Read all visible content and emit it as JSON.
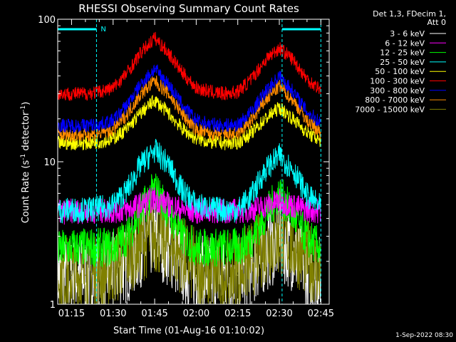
{
  "chart_data": {
    "type": "line",
    "title": "RHESSI Observing Summary Count Rates",
    "xlabel": "Start Time (01-Aug-16 01:10:02)",
    "ylabel": "Count Rate (s⁻¹ detector⁻¹)",
    "ylabel_parts": {
      "prefix": "Count Rate (s",
      "sup1": "-1",
      "mid": " detector",
      "sup2": "-1",
      "suffix": ")"
    },
    "yscale": "log",
    "ylim": [
      1,
      100
    ],
    "xlim": [
      "01:10",
      "02:48"
    ],
    "y_ticks": [
      "1",
      "10",
      "100"
    ],
    "x_ticks": [
      "01:15",
      "01:30",
      "01:45",
      "02:00",
      "02:15",
      "02:30",
      "02:45"
    ],
    "legend_header": [
      "Det 1,3, FDecim 1,",
      "Att 0"
    ],
    "background": "#000000",
    "axis_color": "#ffffff",
    "night_marker": {
      "label": "N",
      "color": "#00ffff",
      "intervals": [
        [
          "01:10",
          "01:24"
        ],
        [
          "02:31",
          "02:45"
        ]
      ]
    },
    "saa_lines": [
      "01:24",
      "02:31",
      "02:45"
    ],
    "series": [
      {
        "name": "3 - 6 keV",
        "color": "#ffffff",
        "x": [
          "01:10",
          "01:15",
          "01:20",
          "01:25",
          "01:30",
          "01:35",
          "01:40",
          "01:45",
          "01:50",
          "01:55",
          "02:00",
          "02:05",
          "02:10",
          "02:15",
          "02:20",
          "02:25",
          "02:30",
          "02:35",
          "02:40",
          "02:45"
        ],
        "values": [
          1.6,
          1.6,
          1.6,
          1.6,
          1.7,
          1.9,
          2.5,
          3.0,
          2.5,
          1.9,
          1.6,
          1.6,
          1.6,
          1.6,
          1.8,
          2.3,
          2.8,
          2.3,
          1.8,
          1.6
        ]
      },
      {
        "name": "6 - 12 keV",
        "color": "#ff00ff",
        "x": [
          "01:10",
          "01:15",
          "01:20",
          "01:25",
          "01:30",
          "01:35",
          "01:40",
          "01:45",
          "01:50",
          "01:55",
          "02:00",
          "02:05",
          "02:10",
          "02:15",
          "02:20",
          "02:25",
          "02:30",
          "02:35",
          "02:40",
          "02:45"
        ],
        "values": [
          4.4,
          4.5,
          4.5,
          4.5,
          4.5,
          4.6,
          5.0,
          5.5,
          5.0,
          4.6,
          4.5,
          4.5,
          4.5,
          4.5,
          4.6,
          4.9,
          5.3,
          4.9,
          4.6,
          4.5
        ]
      },
      {
        "name": "12 - 25 keV",
        "color": "#00ff00",
        "x": [
          "01:10",
          "01:15",
          "01:20",
          "01:25",
          "01:30",
          "01:35",
          "01:40",
          "01:45",
          "01:50",
          "01:55",
          "02:00",
          "02:05",
          "02:10",
          "02:15",
          "02:20",
          "02:25",
          "02:30",
          "02:35",
          "02:40",
          "02:45"
        ],
        "values": [
          2.4,
          2.5,
          2.5,
          2.5,
          2.5,
          3.0,
          4.5,
          6.5,
          4.5,
          3.0,
          2.5,
          2.5,
          2.5,
          2.5,
          2.9,
          4.2,
          6.0,
          4.2,
          2.9,
          2.5
        ]
      },
      {
        "name": "25 - 50 keV",
        "color": "#00ffff",
        "x": [
          "01:10",
          "01:15",
          "01:20",
          "01:25",
          "01:30",
          "01:35",
          "01:40",
          "01:45",
          "01:50",
          "01:55",
          "02:00",
          "02:05",
          "02:10",
          "02:15",
          "02:20",
          "02:25",
          "02:30",
          "02:35",
          "02:40",
          "02:45"
        ],
        "values": [
          4.5,
          4.6,
          4.6,
          4.7,
          5.0,
          6.3,
          9.5,
          12.0,
          9.5,
          6.3,
          5.0,
          4.7,
          4.6,
          4.6,
          5.8,
          8.8,
          11.0,
          8.8,
          5.8,
          4.8
        ]
      },
      {
        "name": "50 - 100 keV",
        "color": "#ffff00",
        "x": [
          "01:10",
          "01:15",
          "01:20",
          "01:25",
          "01:30",
          "01:35",
          "01:40",
          "01:45",
          "01:50",
          "01:55",
          "02:00",
          "02:05",
          "02:10",
          "02:15",
          "02:20",
          "02:25",
          "02:30",
          "02:35",
          "02:40",
          "02:45"
        ],
        "values": [
          13.5,
          13.5,
          13.5,
          13.8,
          14.5,
          17.0,
          22.0,
          27.0,
          22.0,
          17.0,
          14.5,
          13.8,
          13.5,
          13.6,
          16.0,
          20.0,
          24.0,
          20.0,
          16.0,
          14.0
        ]
      },
      {
        "name": "100 - 300 keV",
        "color": "#ff0000",
        "x": [
          "01:10",
          "01:15",
          "01:20",
          "01:25",
          "01:30",
          "01:35",
          "01:40",
          "01:45",
          "01:50",
          "01:55",
          "02:00",
          "02:05",
          "02:10",
          "02:15",
          "02:20",
          "02:25",
          "02:30",
          "02:35",
          "02:40",
          "02:45"
        ],
        "values": [
          30,
          30,
          30,
          31,
          33,
          42,
          58,
          74,
          58,
          42,
          33,
          31,
          30,
          31,
          38,
          52,
          63,
          52,
          38,
          32
        ]
      },
      {
        "name": "300 - 800 keV",
        "color": "#0000ff",
        "x": [
          "01:10",
          "01:15",
          "01:20",
          "01:25",
          "01:30",
          "01:35",
          "01:40",
          "01:45",
          "01:50",
          "01:55",
          "02:00",
          "02:05",
          "02:10",
          "02:15",
          "02:20",
          "02:25",
          "02:30",
          "02:35",
          "02:40",
          "02:45"
        ],
        "values": [
          18.0,
          18.0,
          18.0,
          18.3,
          19.5,
          25.0,
          35.0,
          45.0,
          35.0,
          25.0,
          19.5,
          18.3,
          18.0,
          18.2,
          22.5,
          31.0,
          40.0,
          31.0,
          22.5,
          18.8
        ]
      },
      {
        "name": "800 - 7000 keV",
        "color": "#ff8c00",
        "x": [
          "01:10",
          "01:15",
          "01:20",
          "01:25",
          "01:30",
          "01:35",
          "01:40",
          "01:45",
          "01:50",
          "01:55",
          "02:00",
          "02:05",
          "02:10",
          "02:15",
          "02:20",
          "02:25",
          "02:30",
          "02:35",
          "02:40",
          "02:45"
        ],
        "values": [
          15.5,
          15.5,
          15.5,
          15.8,
          16.8,
          21.5,
          30.0,
          37.0,
          30.0,
          21.5,
          16.8,
          15.8,
          15.5,
          15.7,
          19.5,
          27.0,
          34.0,
          27.0,
          19.5,
          16.0
        ]
      },
      {
        "name": "7000 - 15000 keV",
        "color": "#808000",
        "x": [
          "01:10",
          "01:15",
          "01:20",
          "01:25",
          "01:30",
          "01:35",
          "01:40",
          "01:45",
          "01:50",
          "01:55",
          "02:00",
          "02:05",
          "02:10",
          "02:15",
          "02:20",
          "02:25",
          "02:30",
          "02:35",
          "02:40",
          "02:45"
        ],
        "values": [
          1.6,
          1.6,
          1.6,
          1.6,
          1.8,
          2.2,
          2.7,
          3.1,
          2.7,
          2.2,
          1.8,
          1.6,
          1.6,
          1.7,
          2.1,
          2.6,
          2.9,
          2.6,
          2.1,
          1.7
        ]
      }
    ]
  },
  "timestamp": "1-Sep-2022 08:30"
}
